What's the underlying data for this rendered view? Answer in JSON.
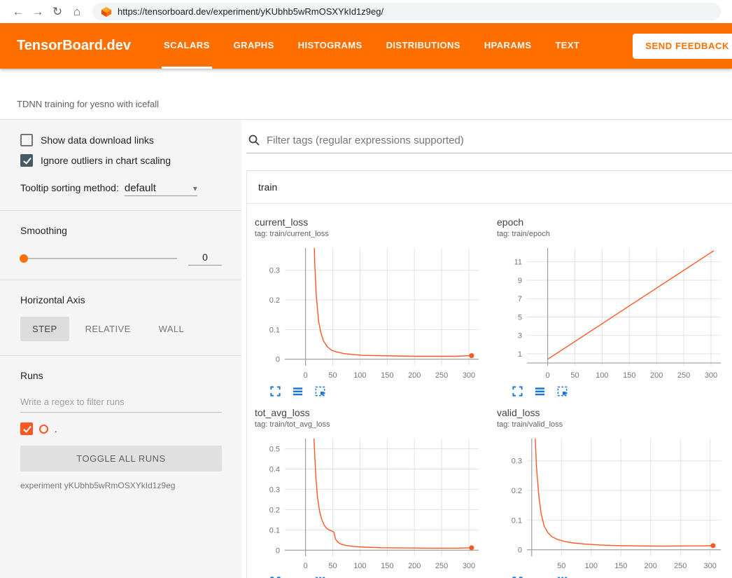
{
  "browser": {
    "url": "https://tensorboard.dev/experiment/yKUbhb5wRmOSXYkId1z9eg/"
  },
  "header": {
    "logo": "TensorBoard.dev",
    "tabs": [
      {
        "label": "SCALARS",
        "active": true
      },
      {
        "label": "GRAPHS",
        "active": false
      },
      {
        "label": "HISTOGRAMS",
        "active": false
      },
      {
        "label": "DISTRIBUTIONS",
        "active": false
      },
      {
        "label": "HPARAMS",
        "active": false
      },
      {
        "label": "TEXT",
        "active": false
      }
    ],
    "feedback_button": "SEND FEEDBACK"
  },
  "subheader": {
    "experiment_title": "TDNN training for yesno with icefall"
  },
  "sidebar": {
    "show_download": {
      "label": "Show data download links",
      "checked": false
    },
    "ignore_outliers": {
      "label": "Ignore outliers in chart scaling",
      "checked": true
    },
    "tooltip_sorting": {
      "label": "Tooltip sorting method:",
      "value": "default"
    },
    "smoothing": {
      "label": "Smoothing",
      "value": "0"
    },
    "horizontal_axis": {
      "label": "Horizontal Axis",
      "options": [
        "STEP",
        "RELATIVE",
        "WALL"
      ],
      "selected": "STEP"
    },
    "runs": {
      "label": "Runs",
      "filter_placeholder": "Write a regex to filter runs",
      "run_name": ".",
      "run_checked": true,
      "toggle_all": "TOGGLE ALL RUNS",
      "experiment_note": "experiment yKUbhb5wRmOSXYkId1z9eg"
    }
  },
  "main": {
    "filter_placeholder": "Filter tags (regular expressions supported)",
    "group": "train"
  },
  "colors": {
    "accent": "#ff6f00",
    "run": "#ff5722",
    "toolbar_blue": "#1976d2"
  },
  "chart_data": [
    {
      "type": "line",
      "title": "current_loss",
      "tag": "tag: train/current_loss",
      "xlabel": "step",
      "xlim": [
        -38,
        318
      ],
      "ylim": [
        -0.022,
        0.375
      ],
      "xticks": [
        0,
        50,
        100,
        150,
        200,
        250,
        300
      ],
      "yticks": [
        0,
        0.1,
        0.2,
        0.3
      ],
      "end_dot": true,
      "series": [
        {
          "name": ".",
          "points": [
            [
              13,
              0.6
            ],
            [
              17,
              0.32
            ],
            [
              20,
              0.21
            ],
            [
              24,
              0.13
            ],
            [
              28,
              0.09
            ],
            [
              33,
              0.062
            ],
            [
              40,
              0.042
            ],
            [
              48,
              0.03
            ],
            [
              58,
              0.024
            ],
            [
              70,
              0.019
            ],
            [
              85,
              0.016
            ],
            [
              105,
              0.013
            ],
            [
              130,
              0.012
            ],
            [
              160,
              0.011
            ],
            [
              200,
              0.01
            ],
            [
              240,
              0.01
            ],
            [
              275,
              0.01
            ],
            [
              305,
              0.012
            ]
          ]
        }
      ]
    },
    {
      "type": "line",
      "title": "epoch",
      "tag": "tag: train/epoch",
      "xlabel": "step",
      "xlim": [
        -38,
        318
      ],
      "ylim": [
        -0.3,
        12.5
      ],
      "xticks": [
        0,
        50,
        100,
        150,
        200,
        250,
        300
      ],
      "yticks": [
        1,
        3,
        5,
        7,
        9,
        11
      ],
      "end_dot": false,
      "series": [
        {
          "name": ".",
          "points": [
            [
              0,
              0.4
            ],
            [
              305,
              12.2
            ]
          ]
        }
      ]
    },
    {
      "type": "line",
      "title": "tot_avg_loss",
      "tag": "tag: train/tot_avg_loss",
      "xlabel": "step",
      "xlim": [
        -38,
        318
      ],
      "ylim": [
        -0.03,
        0.55
      ],
      "xticks": [
        0,
        50,
        100,
        150,
        200,
        250,
        300
      ],
      "yticks": [
        0,
        0.1,
        0.2,
        0.3,
        0.4,
        0.5
      ],
      "end_dot": true,
      "series": [
        {
          "name": ".",
          "points": [
            [
              13,
              0.75
            ],
            [
              16,
              0.52
            ],
            [
              19,
              0.36
            ],
            [
              22,
              0.26
            ],
            [
              26,
              0.19
            ],
            [
              30,
              0.15
            ],
            [
              34,
              0.125
            ],
            [
              38,
              0.11
            ],
            [
              43,
              0.1
            ],
            [
              48,
              0.095
            ],
            [
              52,
              0.09
            ],
            [
              55,
              0.055
            ],
            [
              60,
              0.038
            ],
            [
              67,
              0.028
            ],
            [
              75,
              0.023
            ],
            [
              90,
              0.018
            ],
            [
              110,
              0.015
            ],
            [
              140,
              0.012
            ],
            [
              180,
              0.011
            ],
            [
              230,
              0.01
            ],
            [
              280,
              0.01
            ],
            [
              305,
              0.012
            ]
          ]
        }
      ]
    },
    {
      "type": "line",
      "title": "valid_loss",
      "tag": "tag: train/valid_loss",
      "xlabel": "step",
      "xlim": [
        -8,
        318
      ],
      "ylim": [
        -0.022,
        0.375
      ],
      "xticks": [
        50,
        100,
        150,
        200,
        250,
        300
      ],
      "yticks": [
        0,
        0.1,
        0.2,
        0.3
      ],
      "end_dot": true,
      "series": [
        {
          "name": ".",
          "points": [
            [
              2,
              0.7
            ],
            [
              5,
              0.42
            ],
            [
              8,
              0.28
            ],
            [
              12,
              0.18
            ],
            [
              16,
              0.12
            ],
            [
              21,
              0.08
            ],
            [
              27,
              0.058
            ],
            [
              34,
              0.044
            ],
            [
              43,
              0.035
            ],
            [
              55,
              0.028
            ],
            [
              70,
              0.023
            ],
            [
              90,
              0.019
            ],
            [
              115,
              0.016
            ],
            [
              145,
              0.014
            ],
            [
              180,
              0.013
            ],
            [
              220,
              0.012
            ],
            [
              260,
              0.013
            ],
            [
              290,
              0.013
            ],
            [
              305,
              0.014
            ]
          ]
        }
      ]
    }
  ]
}
